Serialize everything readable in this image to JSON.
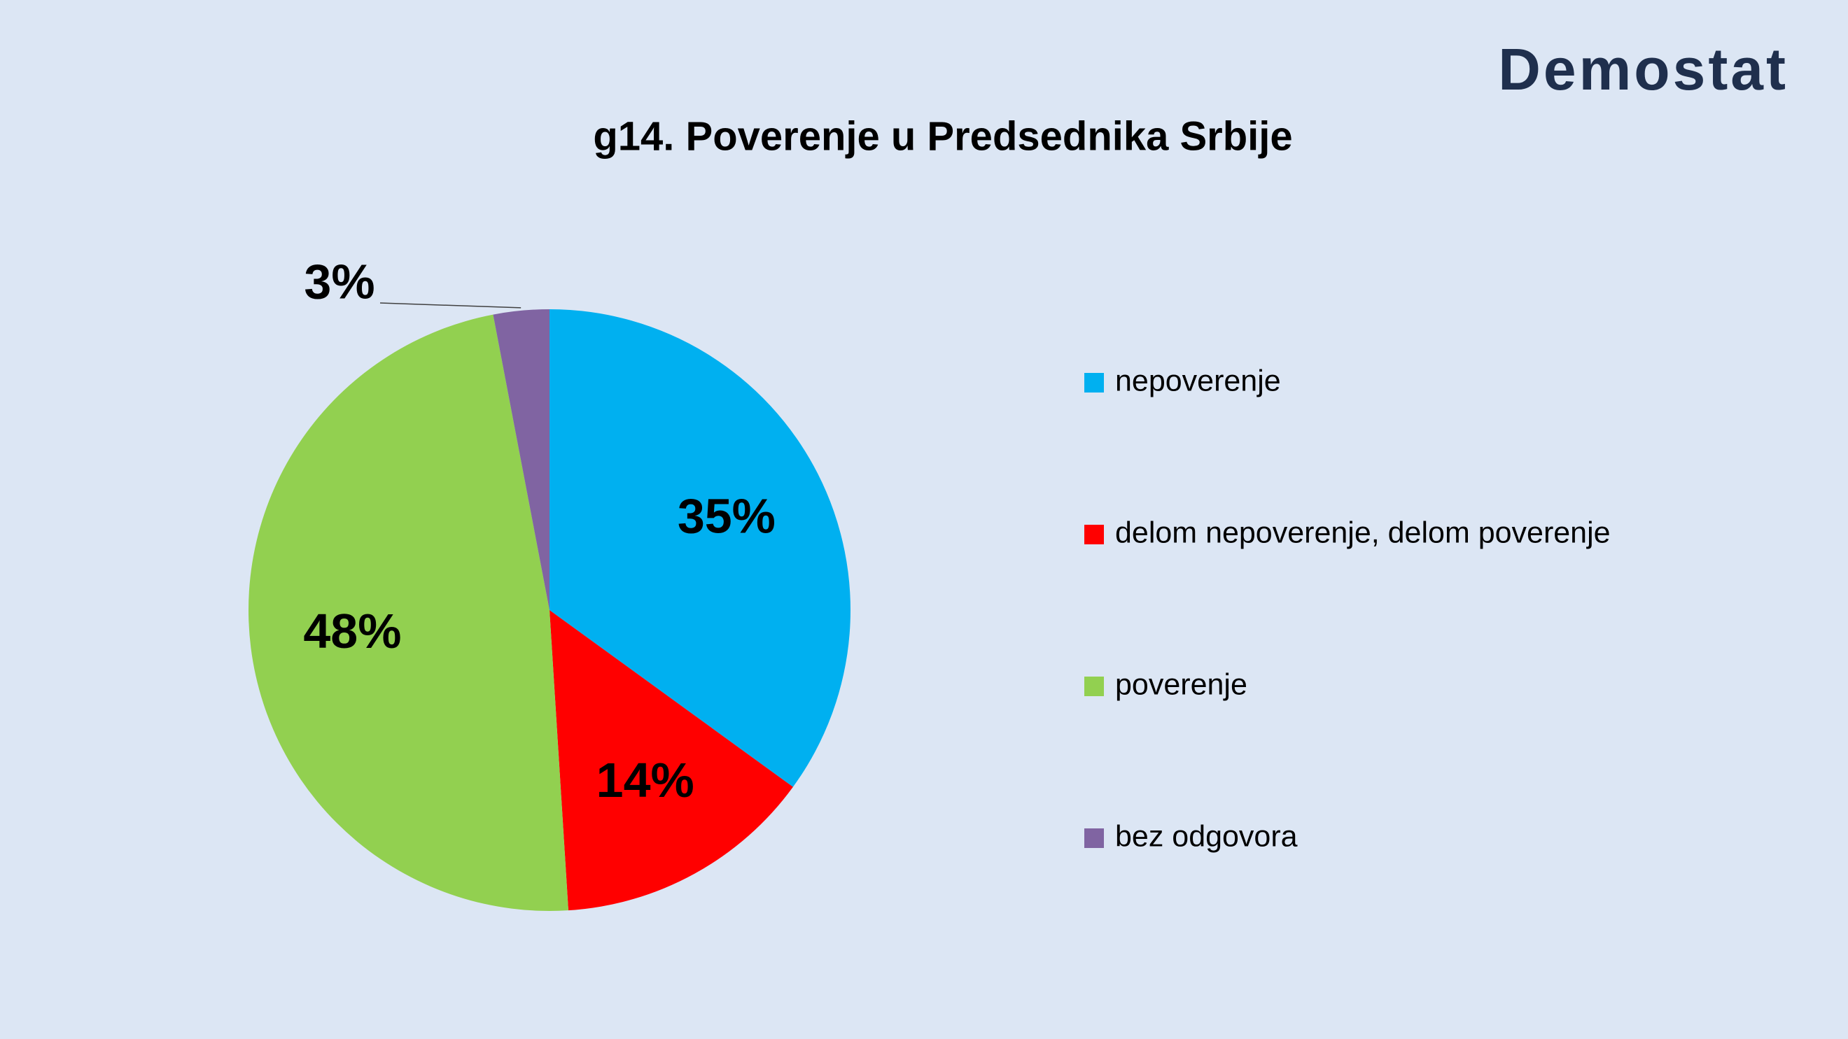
{
  "logo": "Demostat",
  "chart_data": {
    "type": "pie",
    "title": "g14. Poverenje u Predsednika Srbije",
    "categories": [
      "nepoverenje",
      "delom nepoverenje, delom poverenje",
      "poverenje",
      "bez odgovora"
    ],
    "values": [
      35,
      14,
      48,
      3
    ],
    "value_labels": [
      "35%",
      "14%",
      "48%",
      "3%"
    ],
    "colors": [
      "#00b0f0",
      "#ff0000",
      "#92d050",
      "#8064a2"
    ],
    "legend": "right"
  }
}
